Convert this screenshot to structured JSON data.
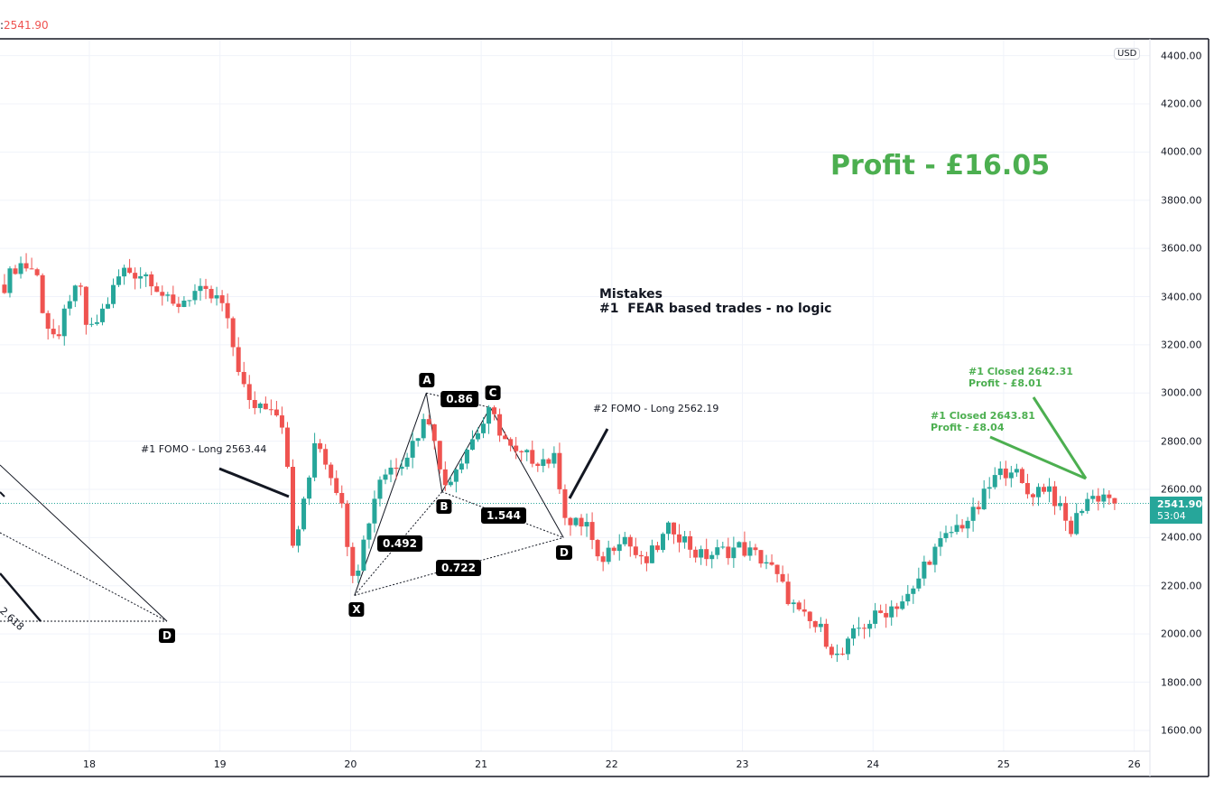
{
  "header": {
    "separator": ":",
    "last_price": "2541.90"
  },
  "axis": {
    "currency": "USD",
    "last_price_label": "2541.90",
    "countdown": "53:04"
  },
  "annotations": {
    "profit_total": "Profit - £16.05",
    "mistakes_title": "Mistakes",
    "mistakes_item": "#1  FEAR based trades - no logic",
    "fomo1": "#1 FOMO - Long 2563.44",
    "fomo2": "#2 FOMO - Long 2562.19",
    "closed1_line1": "#1 Closed 2642.31",
    "closed1_line2": "Profit - £8.01",
    "closed2_line1": "#1 Closed 2643.81",
    "closed2_line2": "Profit - £8.04"
  },
  "pattern": {
    "points": {
      "X": [
        20.03,
        2160
      ],
      "A": [
        20.58,
        3000
      ],
      "B": [
        20.7,
        2590
      ],
      "C": [
        21.07,
        2940
      ],
      "D": [
        21.63,
        2400
      ]
    },
    "labels": {
      "X": "X",
      "A": "A",
      "B": "B",
      "C": "C",
      "D": "D"
    },
    "ratios": {
      "AC": "0.86",
      "XB": "0.492",
      "BD": "1.544",
      "XD": "0.722"
    },
    "left_ratio": "2.618",
    "left_d_label": "D"
  },
  "chart_data": {
    "type": "candlestick",
    "title": "",
    "xlabel": "",
    "ylabel": "USD",
    "x_ticks": [
      "18",
      "19",
      "20",
      "21",
      "22",
      "23",
      "24",
      "25",
      "26"
    ],
    "y_ticks": [
      "4400.00",
      "4200.00",
      "4000.00",
      "3800.00",
      "3600.00",
      "3400.00",
      "3200.00",
      "3000.00",
      "2800.00",
      "2600.00",
      "2400.00",
      "2200.00",
      "2000.00",
      "1800.00",
      "1600.00"
    ],
    "xlim_days": [
      17.32,
      26.35
    ],
    "ylim": [
      1515,
      4580
    ],
    "interval_hours": 1,
    "last_close": 2541.9,
    "up_color": "#26a69a",
    "down_color": "#ef5350",
    "price_keypoints": [
      [
        17.35,
        3450
      ],
      [
        17.45,
        3540
      ],
      [
        17.59,
        3510
      ],
      [
        17.66,
        3300
      ],
      [
        17.77,
        3200
      ],
      [
        17.83,
        3400
      ],
      [
        17.94,
        3420
      ],
      [
        17.99,
        3230
      ],
      [
        18.15,
        3390
      ],
      [
        18.25,
        3510
      ],
      [
        18.46,
        3490
      ],
      [
        18.63,
        3350
      ],
      [
        18.8,
        3420
      ],
      [
        19.01,
        3380
      ],
      [
        19.15,
        3090
      ],
      [
        19.22,
        2950
      ],
      [
        19.39,
        2960
      ],
      [
        19.49,
        2870
      ],
      [
        19.56,
        2350
      ],
      [
        19.67,
        2600
      ],
      [
        19.73,
        2830
      ],
      [
        19.91,
        2590
      ],
      [
        20.03,
        2230
      ],
      [
        20.22,
        2650
      ],
      [
        20.42,
        2740
      ],
      [
        20.58,
        2900
      ],
      [
        20.63,
        2880
      ],
      [
        20.7,
        2600
      ],
      [
        20.91,
        2790
      ],
      [
        21.07,
        2920
      ],
      [
        21.25,
        2740
      ],
      [
        21.57,
        2720
      ],
      [
        21.66,
        2450
      ],
      [
        21.81,
        2460
      ],
      [
        21.89,
        2290
      ],
      [
        22.08,
        2420
      ],
      [
        22.24,
        2280
      ],
      [
        22.46,
        2450
      ],
      [
        22.67,
        2320
      ],
      [
        22.98,
        2360
      ],
      [
        23.19,
        2300
      ],
      [
        23.43,
        2080
      ],
      [
        23.61,
        2010
      ],
      [
        23.74,
        1890
      ],
      [
        23.88,
        2020
      ],
      [
        24.16,
        2120
      ],
      [
        24.3,
        2160
      ],
      [
        24.4,
        2300
      ],
      [
        24.61,
        2430
      ],
      [
        24.78,
        2500
      ],
      [
        24.92,
        2640
      ],
      [
        25.06,
        2700
      ],
      [
        25.17,
        2580
      ],
      [
        25.34,
        2620
      ],
      [
        25.51,
        2420
      ],
      [
        25.62,
        2560
      ],
      [
        25.79,
        2580
      ],
      [
        25.89,
        2541.9
      ]
    ]
  }
}
